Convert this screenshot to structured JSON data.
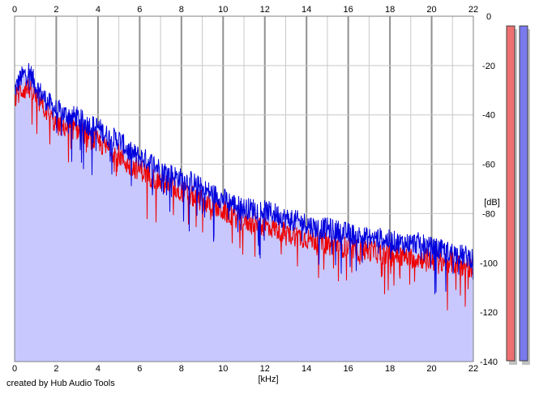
{
  "chart_data": {
    "type": "line",
    "xlabel": "[kHz]",
    "ylabel": "[dB]",
    "xlim": [
      0,
      22
    ],
    "ylim": [
      -140,
      0
    ],
    "x_ticks": [
      "0",
      "2",
      "4",
      "6",
      "8",
      "10",
      "12",
      "14",
      "16",
      "18",
      "20",
      "22"
    ],
    "y_ticks": [
      "0",
      "-20",
      "-40",
      "-60",
      "-80",
      "-100",
      "-120",
      "-140"
    ],
    "grid": true,
    "series": [
      {
        "color": "#0000dd",
        "fill": "#c8c8ff",
        "envelope_x": [
          0,
          0.3,
          0.7,
          1,
          1.5,
          2,
          2.5,
          3,
          3.5,
          4,
          4.5,
          5,
          5.5,
          6,
          6.5,
          7,
          7.5,
          8,
          8.5,
          9,
          9.5,
          10,
          10.5,
          11,
          11.5,
          12,
          12.5,
          13,
          13.5,
          14,
          14.5,
          15,
          15.5,
          16,
          16.5,
          17,
          17.5,
          18,
          18.5,
          19,
          19.5,
          20,
          20.5,
          21,
          21.5,
          22
        ],
        "envelope_y": [
          -30,
          -25,
          -22,
          -28,
          -34,
          -38,
          -40,
          -41,
          -44,
          -45,
          -49,
          -50,
          -55,
          -57,
          -59,
          -62,
          -64,
          -66,
          -67,
          -70,
          -72,
          -74,
          -76,
          -78,
          -78,
          -79,
          -80,
          -82,
          -83,
          -84,
          -86,
          -86,
          -87,
          -88,
          -89,
          -90,
          -90,
          -91,
          -92,
          -92,
          -92,
          -94,
          -95,
          -96,
          -97,
          -98
        ]
      },
      {
        "color": "#ee0000",
        "envelope_x": [
          0,
          0.3,
          0.7,
          1,
          1.5,
          2,
          2.5,
          3,
          3.5,
          4,
          4.5,
          5,
          5.5,
          6,
          6.5,
          7,
          7.5,
          8,
          8.5,
          9,
          9.5,
          10,
          10.5,
          11,
          11.5,
          12,
          12.5,
          13,
          13.5,
          14,
          14.5,
          15,
          15.5,
          16,
          16.5,
          17,
          17.5,
          18,
          18.5,
          19,
          19.5,
          20,
          20.5,
          21,
          21.5,
          22
        ],
        "envelope_y": [
          -34,
          -30,
          -29,
          -33,
          -38,
          -44,
          -45,
          -46,
          -49,
          -51,
          -54,
          -56,
          -61,
          -62,
          -65,
          -67,
          -69,
          -71,
          -73,
          -75,
          -77,
          -79,
          -81,
          -83,
          -84,
          -85,
          -86,
          -88,
          -89,
          -90,
          -91,
          -92,
          -93,
          -94,
          -95,
          -95,
          -96,
          -97,
          -97,
          -98,
          -98,
          -99,
          -99,
          -100,
          -101,
          -102
        ]
      }
    ],
    "level_meters": [
      {
        "color": "#ee7070"
      },
      {
        "color": "#7a7aee"
      }
    ]
  },
  "footer": {
    "credit": "created by Hub Audio Tools"
  }
}
